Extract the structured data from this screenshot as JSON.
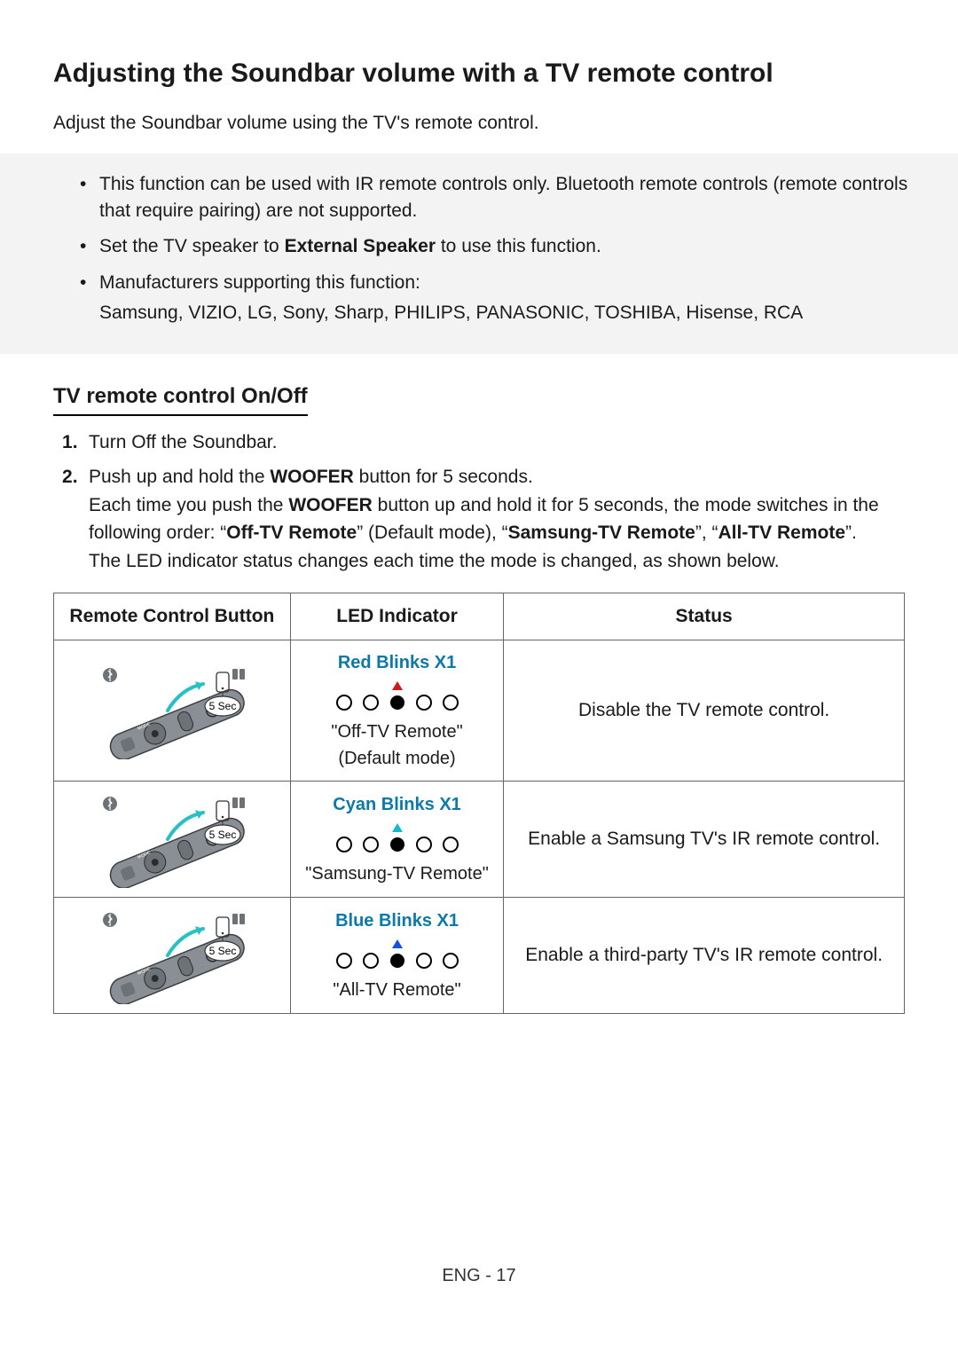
{
  "title": "Adjusting the Soundbar volume with a TV remote control",
  "intro": "Adjust the Soundbar volume using the TV's remote control.",
  "bullets": {
    "b1": "This function can be used with IR remote controls only. Bluetooth remote controls (remote controls that require pairing) are not supported.",
    "b2a": "Set the TV speaker to ",
    "b2b": "External Speaker",
    "b2c": " to use this function.",
    "b3a": "Manufacturers supporting this function:",
    "b3b": "Samsung, VIZIO, LG, Sony, Sharp, PHILIPS, PANASONIC, TOSHIBA, Hisense, RCA"
  },
  "section2": "TV remote control On/Off",
  "steps": {
    "s1": "Turn Off the Soundbar.",
    "s2a": "Push up and hold the ",
    "s2b": "WOOFER",
    "s2c": " button for 5 seconds.",
    "s2d": "Each time you push the ",
    "s2e": "WOOFER",
    "s2f": " button up and hold it for 5 seconds, the mode switches in the following order: “",
    "s2g": "Off-TV Remote",
    "s2h": "” (Default mode), “",
    "s2i": "Samsung-TV Remote",
    "s2j": "”, “",
    "s2k": "All-TV Remote",
    "s2l": "”.",
    "s2m": "The LED indicator status changes each time the mode is changed, as shown below."
  },
  "table": {
    "h1": "Remote Control Button",
    "h2": "LED Indicator",
    "h3": "Status",
    "hold_label": "5 Sec",
    "rows": [
      {
        "led_title": "Red Blinks X1",
        "led_color": "#d11a1a",
        "caption": "\"Off-TV Remote\"",
        "sub": "(Default mode)",
        "status": "Disable the TV remote control."
      },
      {
        "led_title": "Cyan Blinks X1",
        "led_color": "#17b7c7",
        "caption": "\"Samsung-TV Remote\"",
        "sub": "",
        "status": "Enable a Samsung TV's IR remote control."
      },
      {
        "led_title": "Blue Blinks X1",
        "led_color": "#1452d6",
        "caption": "\"All-TV Remote\"",
        "sub": "",
        "status": "Enable a third-party TV's IR remote control."
      }
    ]
  },
  "footer": "ENG - 17",
  "remote_svg": {
    "body_fill": "#8a8f95",
    "body_stroke": "#3a3f44",
    "arrow_color": "#27c0c7",
    "pad_fill": "#6d7277",
    "text_fill": "#ffffff",
    "hold_bubble_stroke": "#333"
  }
}
